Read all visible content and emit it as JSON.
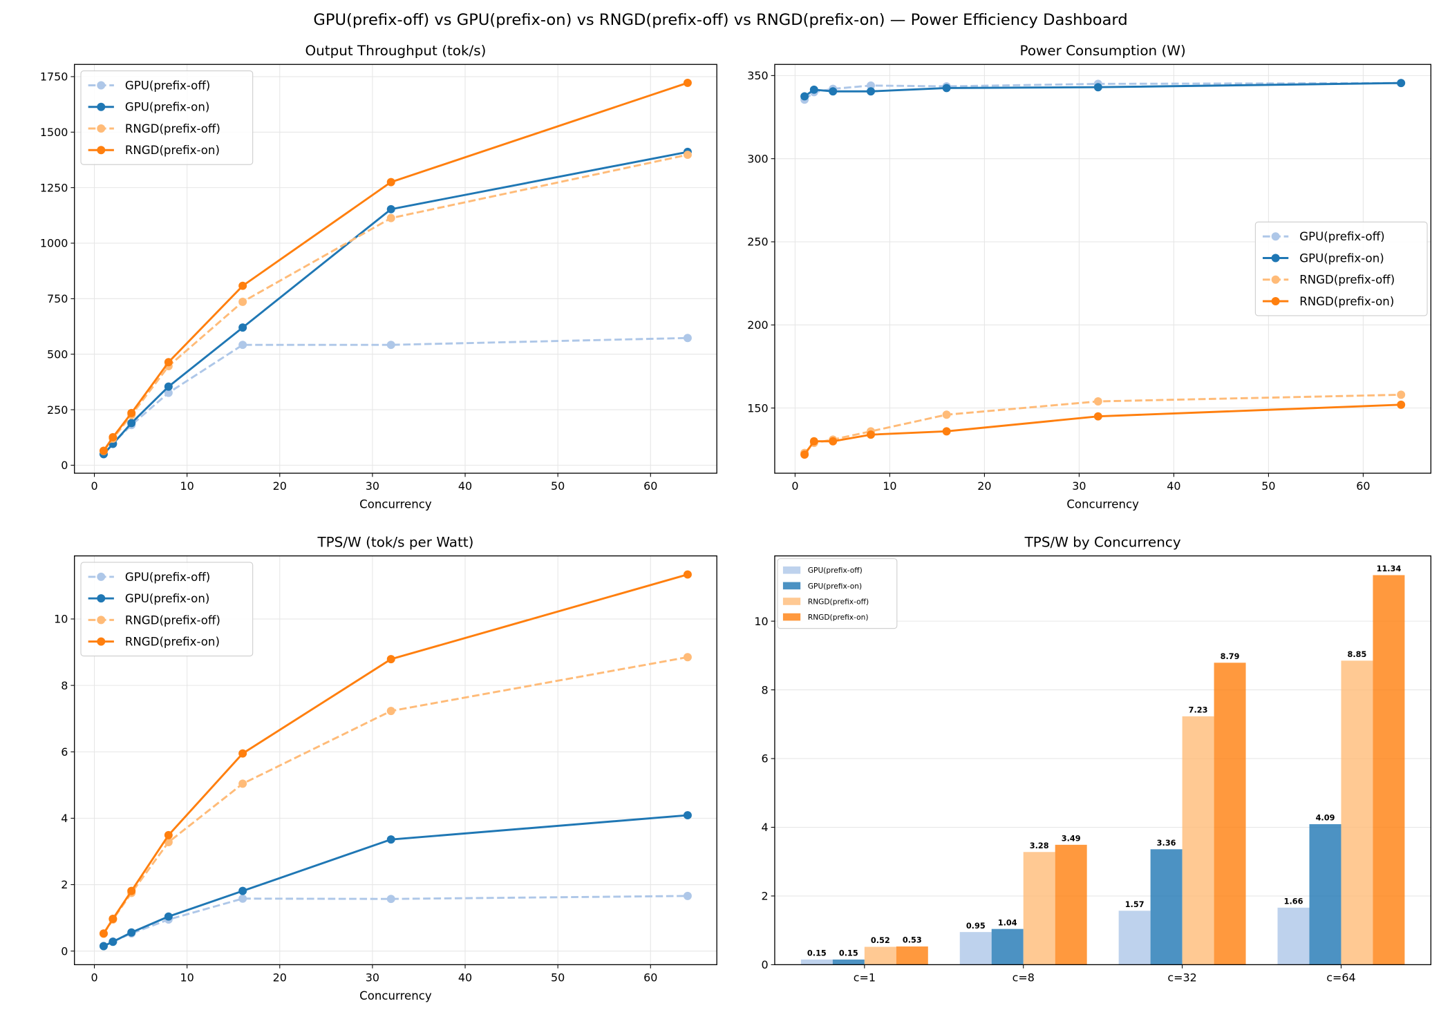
{
  "title": "GPU(prefix-off) vs GPU(prefix-on) vs RNGD(prefix-off) vs RNGD(prefix-on) — Power Efficiency Dashboard",
  "chart_data": [
    {
      "type": "line",
      "title": "Output Throughput (tok/s)",
      "xlabel": "Concurrency",
      "ylabel": "",
      "x": [
        1,
        2,
        4,
        8,
        16,
        32,
        64
      ],
      "xlim": [
        -2.15,
        67.15
      ],
      "ylim": [
        -36,
        1805
      ],
      "xticks": [
        0,
        10,
        20,
        30,
        40,
        50,
        60
      ],
      "yticks": [
        0,
        250,
        500,
        750,
        1000,
        1250,
        1500,
        1750
      ],
      "grid": true,
      "legend": "upper-left",
      "series": [
        {
          "name": "GPU(prefix-off)",
          "color": "#aec7e8",
          "dashed": true,
          "values": [
            50,
            99,
            181,
            326,
            542,
            542,
            573
          ]
        },
        {
          "name": "GPU(prefix-on)",
          "color": "#1f77b4",
          "dashed": false,
          "values": [
            50,
            96,
            190,
            354,
            620,
            1153,
            1411
          ]
        },
        {
          "name": "RNGD(prefix-off)",
          "color": "#ffbb78",
          "dashed": true,
          "values": [
            64,
            120,
            226,
            446,
            736,
            1113,
            1398
          ]
        },
        {
          "name": "RNGD(prefix-on)",
          "color": "#ff7f0e",
          "dashed": false,
          "values": [
            65,
            126,
            235,
            464,
            808,
            1275,
            1722
          ]
        }
      ]
    },
    {
      "type": "line",
      "title": "Power Consumption (W)",
      "xlabel": "Concurrency",
      "ylabel": "",
      "x": [
        1,
        2,
        4,
        8,
        16,
        32,
        64
      ],
      "xlim": [
        -2.15,
        67.15
      ],
      "ylim": [
        110.8,
        356.7
      ],
      "xticks": [
        0,
        10,
        20,
        30,
        40,
        50,
        60
      ],
      "yticks": [
        150,
        200,
        250,
        300,
        350
      ],
      "grid": true,
      "legend": "center-right",
      "series": [
        {
          "name": "GPU(prefix-off)",
          "color": "#aec7e8",
          "dashed": true,
          "values": [
            335.5,
            340,
            342,
            344,
            343.5,
            345,
            345.5
          ]
        },
        {
          "name": "GPU(prefix-on)",
          "color": "#1f77b4",
          "dashed": false,
          "values": [
            337.5,
            341.5,
            340.5,
            340.5,
            342.5,
            343,
            345.5
          ]
        },
        {
          "name": "RNGD(prefix-off)",
          "color": "#ffbb78",
          "dashed": true,
          "values": [
            123,
            129,
            131,
            136,
            146,
            154,
            158
          ]
        },
        {
          "name": "RNGD(prefix-on)",
          "color": "#ff7f0e",
          "dashed": false,
          "values": [
            122,
            130,
            130,
            134,
            136,
            145,
            152
          ]
        }
      ]
    },
    {
      "type": "line",
      "title": "TPS/W (tok/s per Watt)",
      "xlabel": "Concurrency",
      "ylabel": "",
      "x": [
        1,
        2,
        4,
        8,
        16,
        32,
        64
      ],
      "xlim": [
        -2.15,
        67.15
      ],
      "ylim": [
        -0.41,
        11.9
      ],
      "xticks": [
        0,
        10,
        20,
        30,
        40,
        50,
        60
      ],
      "yticks": [
        0,
        2,
        4,
        6,
        8,
        10
      ],
      "grid": true,
      "legend": "upper-left",
      "series": [
        {
          "name": "GPU(prefix-off)",
          "color": "#aec7e8",
          "dashed": true,
          "values": [
            0.15,
            0.29,
            0.53,
            0.95,
            1.58,
            1.57,
            1.66
          ]
        },
        {
          "name": "GPU(prefix-on)",
          "color": "#1f77b4",
          "dashed": false,
          "values": [
            0.15,
            0.28,
            0.56,
            1.04,
            1.81,
            3.36,
            4.09
          ]
        },
        {
          "name": "RNGD(prefix-off)",
          "color": "#ffbb78",
          "dashed": true,
          "values": [
            0.52,
            0.95,
            1.75,
            3.28,
            5.04,
            7.23,
            8.85
          ]
        },
        {
          "name": "RNGD(prefix-on)",
          "color": "#ff7f0e",
          "dashed": false,
          "values": [
            0.53,
            0.97,
            1.81,
            3.49,
            5.95,
            8.79,
            11.34
          ]
        }
      ]
    },
    {
      "type": "bar",
      "title": "TPS/W by Concurrency",
      "xlabel": "",
      "ylabel": "",
      "categories": [
        "c=1",
        "c=8",
        "c=32",
        "c=64"
      ],
      "ylim": [
        0,
        11.9
      ],
      "yticks": [
        0,
        2,
        4,
        6,
        8,
        10
      ],
      "grid": true,
      "legend": "upper-left",
      "series": [
        {
          "name": "GPU(prefix-off)",
          "color": "#aec7e8",
          "values": [
            0.15,
            0.95,
            1.57,
            1.66
          ],
          "labels": [
            "0.15",
            "0.95",
            "1.57",
            "1.66"
          ]
        },
        {
          "name": "GPU(prefix-on)",
          "color": "#1f77b4",
          "values": [
            0.15,
            1.04,
            3.36,
            4.09
          ],
          "labels": [
            "0.15",
            "1.04",
            "3.36",
            "4.09"
          ]
        },
        {
          "name": "RNGD(prefix-off)",
          "color": "#ffbb78",
          "values": [
            0.52,
            3.28,
            7.23,
            8.85
          ],
          "labels": [
            "0.52",
            "3.28",
            "7.23",
            "8.85"
          ]
        },
        {
          "name": "RNGD(prefix-on)",
          "color": "#ff7f0e",
          "values": [
            0.53,
            3.49,
            8.79,
            11.34
          ],
          "labels": [
            "0.53",
            "3.49",
            "8.79",
            "11.34"
          ]
        }
      ]
    }
  ]
}
